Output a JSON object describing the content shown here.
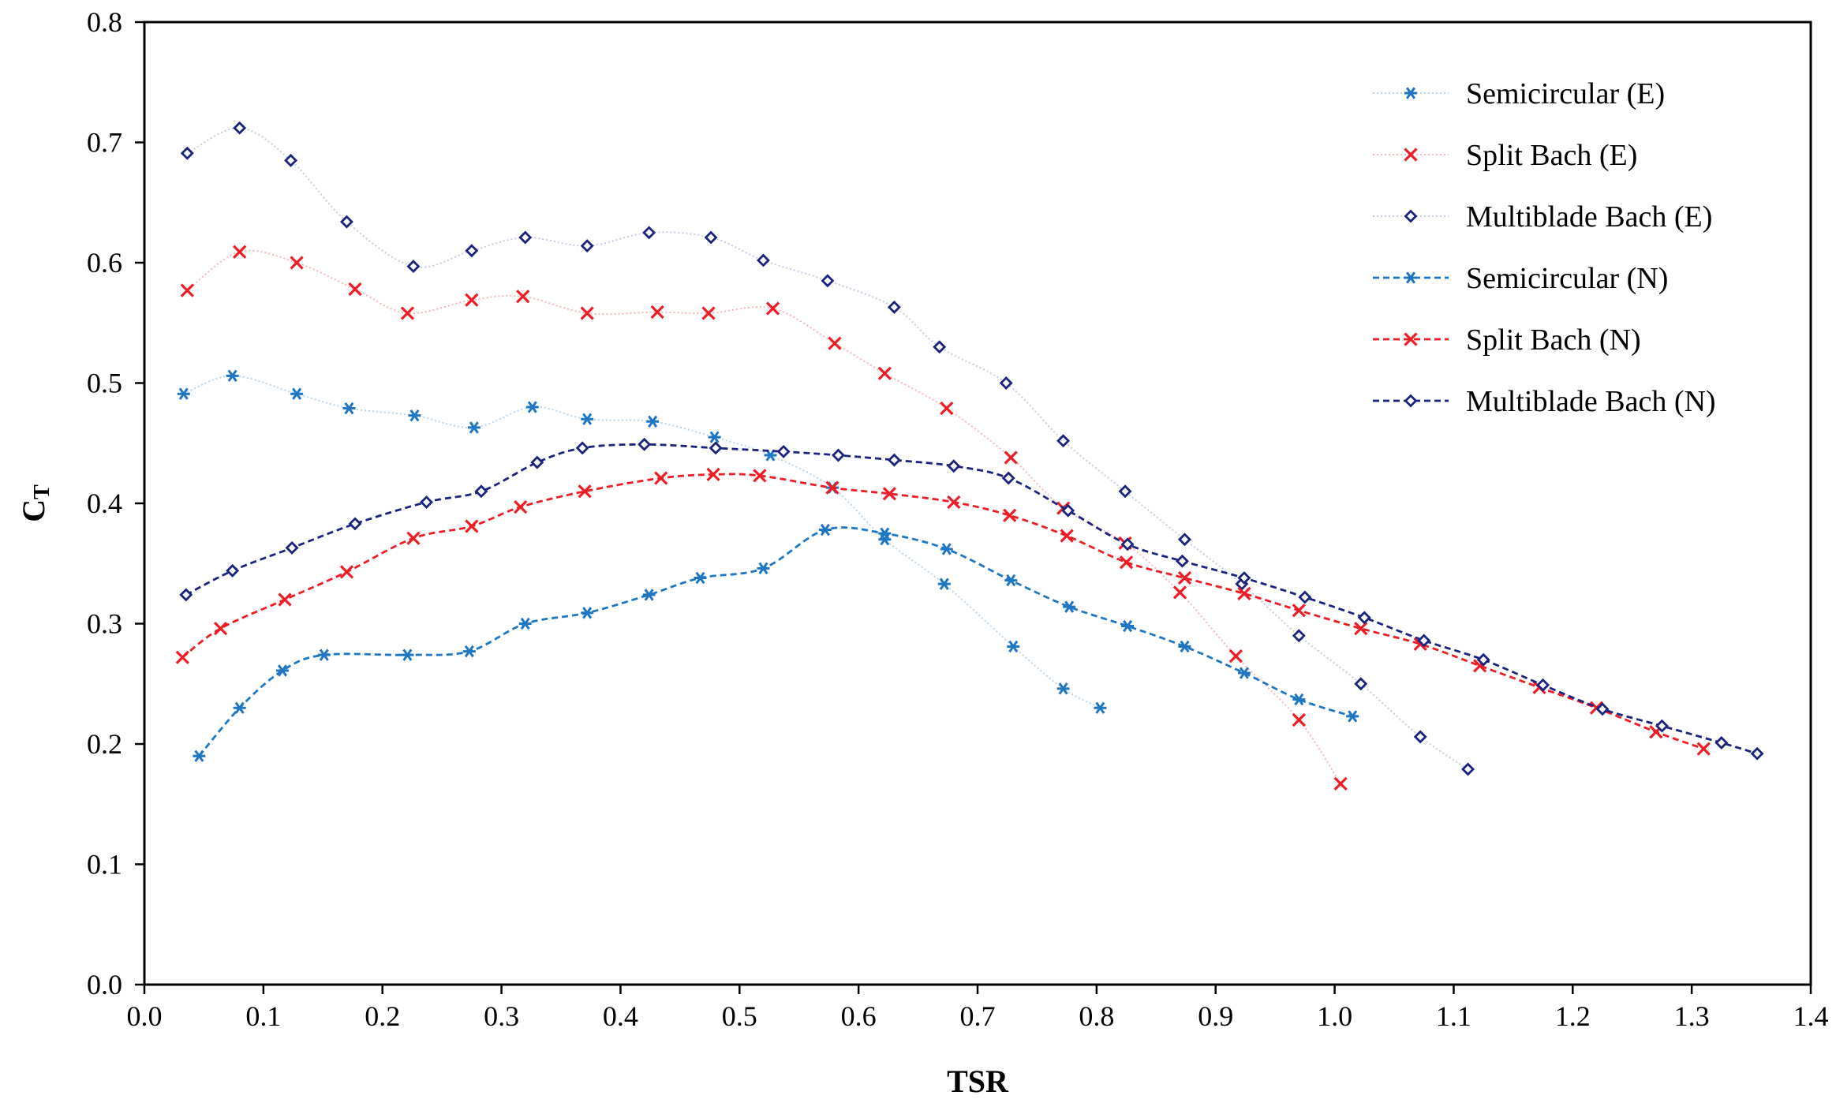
{
  "chart_data": {
    "type": "line",
    "title": "",
    "xlabel": "TSR",
    "ylabel": "C",
    "ylabel_sub": "T",
    "xlim": [
      0.0,
      1.4
    ],
    "ylim": [
      0.0,
      0.8
    ],
    "xticks": [
      0.0,
      0.1,
      0.2,
      0.3,
      0.4,
      0.5,
      0.6,
      0.7,
      0.8,
      0.9,
      1.0,
      1.1,
      1.2,
      1.3,
      1.4
    ],
    "xtick_labels": [
      "0.0",
      "0.1",
      "0.2",
      "0.3",
      "0.4",
      "0.5",
      "0.6",
      "0.7",
      "0.8",
      "0.9",
      "1.0",
      "1.1",
      "1.2",
      "1.3",
      "1.4"
    ],
    "yticks": [
      0.0,
      0.1,
      0.2,
      0.3,
      0.4,
      0.5,
      0.6,
      0.7,
      0.8
    ],
    "ytick_labels": [
      "0.0",
      "0.1",
      "0.2",
      "0.3",
      "0.4",
      "0.5",
      "0.6",
      "0.7",
      "0.8"
    ],
    "grid": false,
    "legend_position": "top-right",
    "series": [
      {
        "name": "Semicircular (E)",
        "color": "#1f77c4",
        "marker": "asterisk",
        "line": "dotted",
        "points": [
          [
            0.033,
            0.491
          ],
          [
            0.074,
            0.506
          ],
          [
            0.128,
            0.491
          ],
          [
            0.172,
            0.479
          ],
          [
            0.227,
            0.473
          ],
          [
            0.277,
            0.463
          ],
          [
            0.326,
            0.48
          ],
          [
            0.372,
            0.47
          ],
          [
            0.427,
            0.468
          ],
          [
            0.479,
            0.455
          ],
          [
            0.526,
            0.44
          ],
          [
            0.578,
            0.413
          ],
          [
            0.622,
            0.37
          ],
          [
            0.672,
            0.333
          ],
          [
            0.73,
            0.281
          ],
          [
            0.772,
            0.246
          ],
          [
            0.803,
            0.23
          ]
        ]
      },
      {
        "name": "Split Bach (E)",
        "color": "#ee1c25",
        "marker": "cross",
        "line": "dotted",
        "points": [
          [
            0.036,
            0.577
          ],
          [
            0.08,
            0.609
          ],
          [
            0.128,
            0.6
          ],
          [
            0.177,
            0.578
          ],
          [
            0.221,
            0.558
          ],
          [
            0.275,
            0.569
          ],
          [
            0.318,
            0.572
          ],
          [
            0.372,
            0.558
          ],
          [
            0.431,
            0.559
          ],
          [
            0.474,
            0.558
          ],
          [
            0.528,
            0.562
          ],
          [
            0.58,
            0.533
          ],
          [
            0.622,
            0.508
          ],
          [
            0.674,
            0.479
          ],
          [
            0.728,
            0.438
          ],
          [
            0.772,
            0.396
          ],
          [
            0.824,
            0.367
          ],
          [
            0.87,
            0.326
          ],
          [
            0.917,
            0.273
          ],
          [
            0.97,
            0.22
          ],
          [
            1.005,
            0.167
          ]
        ]
      },
      {
        "name": "Multiblade Bach (E)",
        "color": "#1a237e",
        "marker": "diamond",
        "line": "dotted",
        "points": [
          [
            0.036,
            0.691
          ],
          [
            0.08,
            0.712
          ],
          [
            0.123,
            0.685
          ],
          [
            0.17,
            0.634
          ],
          [
            0.226,
            0.597
          ],
          [
            0.275,
            0.61
          ],
          [
            0.32,
            0.621
          ],
          [
            0.372,
            0.614
          ],
          [
            0.424,
            0.625
          ],
          [
            0.476,
            0.621
          ],
          [
            0.52,
            0.602
          ],
          [
            0.574,
            0.585
          ],
          [
            0.63,
            0.563
          ],
          [
            0.668,
            0.53
          ],
          [
            0.724,
            0.5
          ],
          [
            0.772,
            0.452
          ],
          [
            0.824,
            0.41
          ],
          [
            0.874,
            0.37
          ],
          [
            0.922,
            0.333
          ],
          [
            0.97,
            0.29
          ],
          [
            1.022,
            0.25
          ],
          [
            1.072,
            0.206
          ],
          [
            1.112,
            0.179
          ]
        ]
      },
      {
        "name": "Semicircular (N)",
        "color": "#1f77c4",
        "marker": "asterisk",
        "line": "dashed",
        "points": [
          [
            0.046,
            0.19
          ],
          [
            0.08,
            0.23
          ],
          [
            0.116,
            0.261
          ],
          [
            0.151,
            0.274
          ],
          [
            0.221,
            0.274
          ],
          [
            0.273,
            0.277
          ],
          [
            0.32,
            0.3
          ],
          [
            0.372,
            0.309
          ],
          [
            0.424,
            0.324
          ],
          [
            0.467,
            0.338
          ],
          [
            0.52,
            0.346
          ],
          [
            0.572,
            0.378
          ],
          [
            0.622,
            0.375
          ],
          [
            0.674,
            0.362
          ],
          [
            0.728,
            0.336
          ],
          [
            0.777,
            0.314
          ],
          [
            0.826,
            0.298
          ],
          [
            0.874,
            0.281
          ],
          [
            0.924,
            0.259
          ],
          [
            0.97,
            0.237
          ],
          [
            1.015,
            0.223
          ]
        ]
      },
      {
        "name": "Split Bach (N)",
        "color": "#ee1c25",
        "marker": "cross",
        "line": "dashed",
        "points": [
          [
            0.032,
            0.272
          ],
          [
            0.064,
            0.296
          ],
          [
            0.118,
            0.32
          ],
          [
            0.17,
            0.343
          ],
          [
            0.226,
            0.371
          ],
          [
            0.275,
            0.381
          ],
          [
            0.316,
            0.397
          ],
          [
            0.37,
            0.41
          ],
          [
            0.434,
            0.421
          ],
          [
            0.478,
            0.424
          ],
          [
            0.517,
            0.423
          ],
          [
            0.578,
            0.413
          ],
          [
            0.626,
            0.408
          ],
          [
            0.68,
            0.401
          ],
          [
            0.727,
            0.39
          ],
          [
            0.775,
            0.373
          ],
          [
            0.825,
            0.351
          ],
          [
            0.874,
            0.338
          ],
          [
            0.924,
            0.325
          ],
          [
            0.97,
            0.311
          ],
          [
            1.022,
            0.296
          ],
          [
            1.072,
            0.283
          ],
          [
            1.122,
            0.265
          ],
          [
            1.172,
            0.247
          ],
          [
            1.22,
            0.23
          ],
          [
            1.27,
            0.21
          ],
          [
            1.31,
            0.196
          ]
        ]
      },
      {
        "name": "Multiblade Bach (N)",
        "color": "#1a237e",
        "marker": "diamond",
        "line": "dashed",
        "points": [
          [
            0.035,
            0.324
          ],
          [
            0.074,
            0.344
          ],
          [
            0.124,
            0.363
          ],
          [
            0.177,
            0.383
          ],
          [
            0.237,
            0.401
          ],
          [
            0.283,
            0.41
          ],
          [
            0.33,
            0.434
          ],
          [
            0.368,
            0.446
          ],
          [
            0.42,
            0.449
          ],
          [
            0.48,
            0.446
          ],
          [
            0.537,
            0.443
          ],
          [
            0.583,
            0.44
          ],
          [
            0.63,
            0.436
          ],
          [
            0.68,
            0.431
          ],
          [
            0.726,
            0.421
          ],
          [
            0.776,
            0.394
          ],
          [
            0.826,
            0.366
          ],
          [
            0.872,
            0.352
          ],
          [
            0.924,
            0.338
          ],
          [
            0.975,
            0.322
          ],
          [
            1.025,
            0.305
          ],
          [
            1.075,
            0.286
          ],
          [
            1.125,
            0.27
          ],
          [
            1.175,
            0.249
          ],
          [
            1.225,
            0.229
          ],
          [
            1.275,
            0.215
          ],
          [
            1.325,
            0.201
          ],
          [
            1.355,
            0.192
          ]
        ]
      }
    ]
  }
}
